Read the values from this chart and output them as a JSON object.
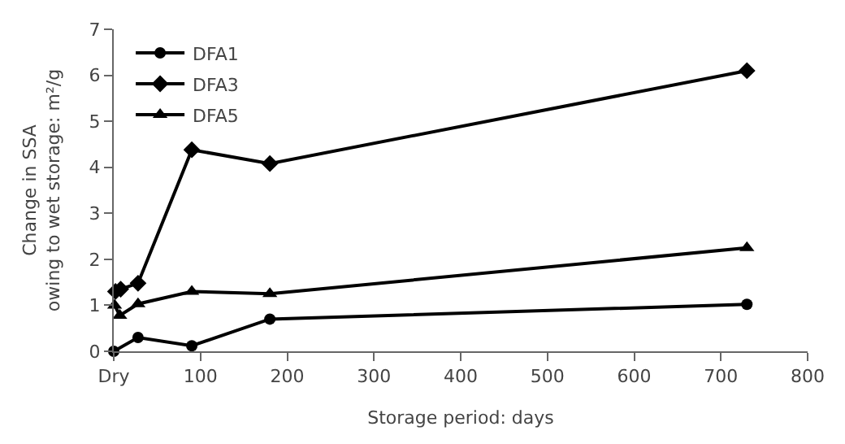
{
  "chart_data": {
    "type": "line",
    "xlabel": "Storage period: days",
    "ylabel": "Change in SSA\nowing to wet storage: m²/g",
    "series": [
      {
        "name": "DFA1",
        "color": "#000000",
        "marker": "circle",
        "x": [
          0,
          28,
          90,
          180,
          730
        ],
        "values": [
          0,
          0.3,
          0.12,
          0.7,
          1.02
        ]
      },
      {
        "name": "DFA3",
        "color": "#000000",
        "marker": "diamond",
        "x": [
          2,
          8,
          28,
          90,
          180,
          730
        ],
        "values": [
          1.3,
          1.35,
          1.48,
          4.38,
          4.08,
          6.1
        ]
      },
      {
        "name": "DFA5",
        "color": "#000000",
        "marker": "triangle",
        "x": [
          1,
          7,
          28,
          90,
          180,
          730
        ],
        "values": [
          1.0,
          0.78,
          1.03,
          1.3,
          1.25,
          2.25
        ]
      }
    ],
    "xlim": [
      0,
      800
    ],
    "xticks": [
      {
        "value": 0,
        "label": "Dry"
      },
      100,
      200,
      300,
      400,
      500,
      600,
      700,
      800
    ],
    "ylim": [
      0,
      7
    ],
    "yticks": [
      0,
      1,
      2,
      3,
      4,
      5,
      6,
      7
    ],
    "legend": "top left",
    "line_style": "solid"
  }
}
